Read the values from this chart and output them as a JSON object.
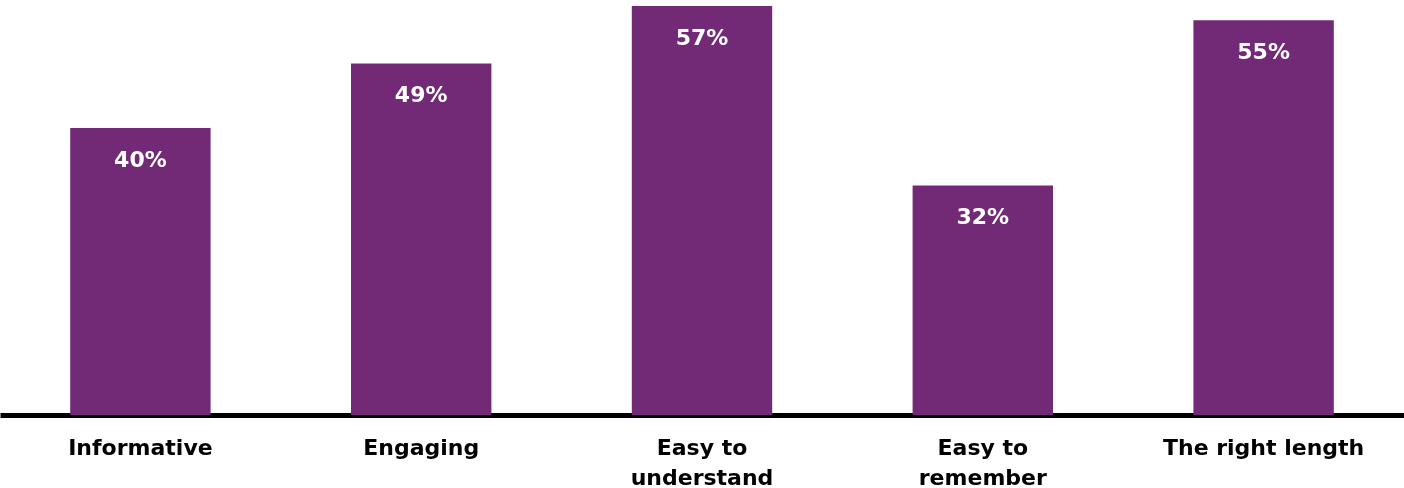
{
  "chart_data": {
    "type": "bar",
    "categories": [
      "Informative",
      "Engaging",
      "Easy to\nunderstand",
      "Easy to\nremember",
      "The right length"
    ],
    "series": [
      {
        "color": "#722a77",
        "values": [
          40,
          49,
          57,
          32,
          55
        ],
        "value_labels": [
          "40%",
          "49%",
          "57%",
          "32%",
          "55%"
        ]
      }
    ]
  }
}
